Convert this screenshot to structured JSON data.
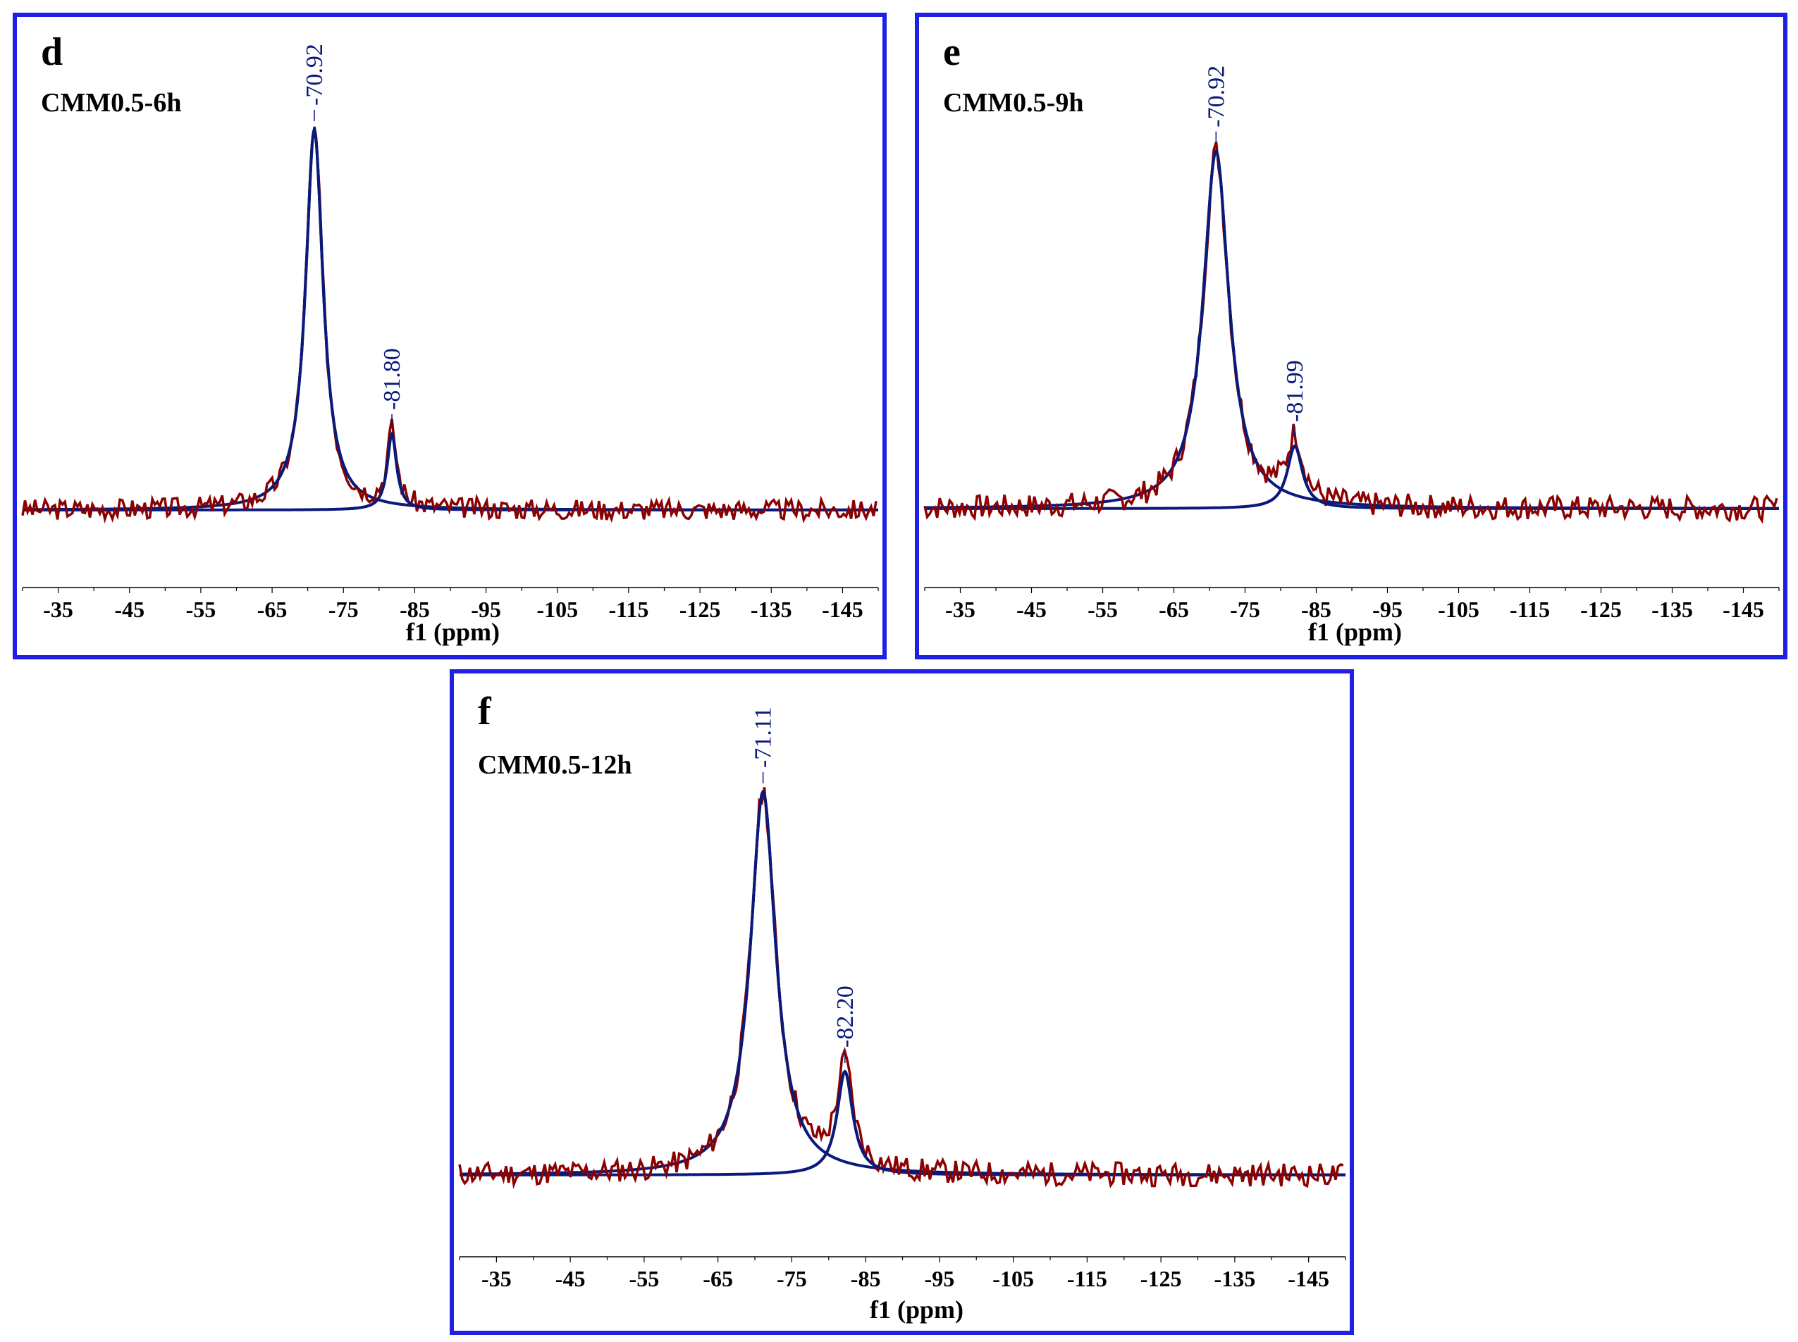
{
  "colors": {
    "frame": "#1f1fe6",
    "spectrum": "#8b0000",
    "fit": "#0a1a7a",
    "peak_label": "#0a1a7a",
    "axis": "#000000"
  },
  "chart_data": [
    {
      "type": "line",
      "panel": "d",
      "sample": "CMM0.5-6h",
      "xlabel": "f1 (ppm)",
      "xlim": [
        -30,
        -150
      ],
      "ylim": [
        -0.15,
        1.1
      ],
      "xticks": [
        "-35",
        "-45",
        "-55",
        "-65",
        "-75",
        "-85",
        "-95",
        "-105",
        "-115",
        "-125",
        "-135",
        "-145"
      ],
      "tick_values": [
        -35,
        -45,
        -55,
        -65,
        -75,
        -85,
        -95,
        -105,
        -115,
        -125,
        -135,
        -145
      ],
      "peaks": [
        {
          "label": "-70.92",
          "position": -70.92,
          "height": 1.0,
          "width": 1.5
        },
        {
          "label": "-81.80",
          "position": -81.8,
          "height": 0.2,
          "width": 0.8
        }
      ],
      "noise_seed": 3,
      "noise_amp": 0.025
    },
    {
      "type": "line",
      "panel": "e",
      "sample": "CMM0.5-9h",
      "xlabel": "f1 (ppm)",
      "xlim": [
        -30,
        -150
      ],
      "ylim": [
        -0.15,
        1.1
      ],
      "xticks": [
        "-35",
        "-45",
        "-55",
        "-65",
        "-75",
        "-85",
        "-95",
        "-105",
        "-115",
        "-125",
        "-135",
        "-145"
      ],
      "tick_values": [
        -35,
        -45,
        -55,
        -65,
        -75,
        -85,
        -95,
        -105,
        -115,
        -125,
        -135,
        -145
      ],
      "peaks": [
        {
          "label": "-70.92",
          "position": -70.92,
          "height": 0.97,
          "width": 2.2
        },
        {
          "label": "-81.99",
          "position": -81.99,
          "height": 0.17,
          "width": 1.3
        }
      ],
      "noise_seed": 7,
      "noise_amp": 0.03
    },
    {
      "type": "line",
      "panel": "f",
      "sample": "CMM0.5-12h",
      "xlabel": "f1 (ppm)",
      "xlim": [
        -30,
        -150
      ],
      "ylim": [
        -0.15,
        1.1
      ],
      "xticks": [
        "-35",
        "-45",
        "-55",
        "-65",
        "-75",
        "-85",
        "-95",
        "-105",
        "-115",
        "-125",
        "-135",
        "-145"
      ],
      "tick_values": [
        -35,
        -45,
        -55,
        -65,
        -75,
        -85,
        -95,
        -105,
        -115,
        -125,
        -135,
        -145
      ],
      "peaks": [
        {
          "label": "-71.11",
          "position": -71.11,
          "height": 1.0,
          "width": 2.1
        },
        {
          "label": "-82.20",
          "position": -82.2,
          "height": 0.27,
          "width": 1.3
        }
      ],
      "noise_seed": 11,
      "noise_amp": 0.028
    }
  ]
}
